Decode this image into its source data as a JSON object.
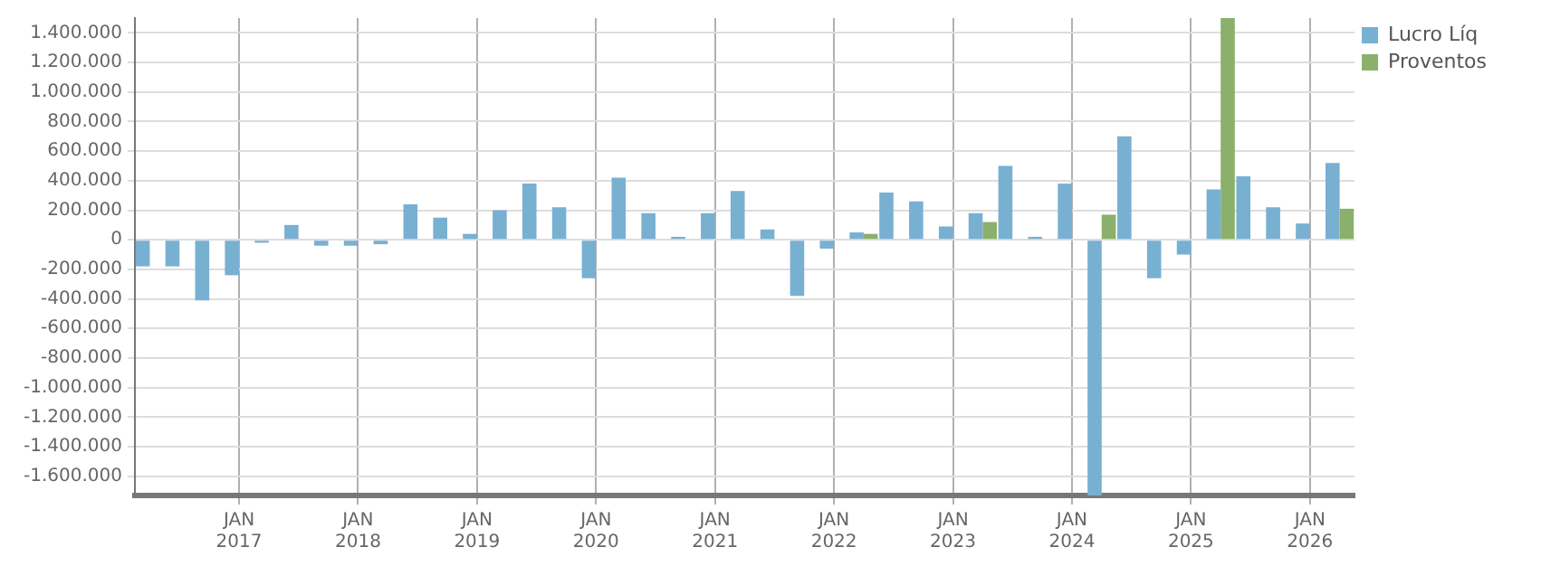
{
  "chart_data": {
    "type": "bar",
    "categories": [
      null,
      null,
      null,
      "JAN 2017",
      null,
      null,
      null,
      "JAN 2018",
      null,
      null,
      null,
      "JAN 2019",
      null,
      null,
      null,
      "JAN 2020",
      null,
      null,
      null,
      "JAN 2021",
      null,
      null,
      null,
      "JAN 2022",
      null,
      null,
      null,
      "JAN 2023",
      null,
      null,
      null,
      "JAN 2024",
      null,
      null,
      null,
      "JAN 2025",
      null,
      null,
      null,
      "JAN 2026",
      null
    ],
    "series": [
      {
        "name": "Lucro Líq",
        "color": "#78b0d2",
        "values": [
          -180000,
          -180000,
          -410000,
          -240000,
          -20000,
          100000,
          -40000,
          -40000,
          -30000,
          240000,
          150000,
          40000,
          200000,
          380000,
          220000,
          -260000,
          420000,
          180000,
          20000,
          180000,
          330000,
          70000,
          -380000,
          -60000,
          50000,
          320000,
          260000,
          90000,
          180000,
          500000,
          20000,
          380000,
          -1730000,
          700000,
          -260000,
          -100000,
          340000,
          430000,
          220000,
          110000,
          520000
        ]
      },
      {
        "name": "Proventos",
        "color": "#8ab06c",
        "values": [
          0,
          0,
          0,
          0,
          0,
          0,
          0,
          0,
          0,
          0,
          0,
          0,
          0,
          0,
          0,
          0,
          0,
          0,
          0,
          0,
          0,
          0,
          0,
          0,
          40000,
          0,
          0,
          0,
          120000,
          0,
          0,
          0,
          170000,
          0,
          0,
          0,
          1500000,
          0,
          0,
          0,
          210000
        ]
      }
    ],
    "ylim": [
      -1730000,
      1500000
    ],
    "yticks": [
      {
        "value": -1600000,
        "label": "-1.600.000"
      },
      {
        "value": -1400000,
        "label": "-1.400.000"
      },
      {
        "value": -1200000,
        "label": "-1.200.000"
      },
      {
        "value": -1000000,
        "label": "-1.000.000"
      },
      {
        "value": -800000,
        "label": "-800.000"
      },
      {
        "value": -600000,
        "label": "-600.000"
      },
      {
        "value": -400000,
        "label": "-400.000"
      },
      {
        "value": -200000,
        "label": "-200.000"
      },
      {
        "value": 0,
        "label": "0"
      },
      {
        "value": 200000,
        "label": "200.000"
      },
      {
        "value": 400000,
        "label": "400.000"
      },
      {
        "value": 600000,
        "label": "600.000"
      },
      {
        "value": 800000,
        "label": "800.000"
      },
      {
        "value": 1000000,
        "label": "1.000.000"
      },
      {
        "value": 1200000,
        "label": "1.200.000"
      },
      {
        "value": 1400000,
        "label": "1.400.000"
      }
    ],
    "grid": true,
    "legend": "top right"
  }
}
